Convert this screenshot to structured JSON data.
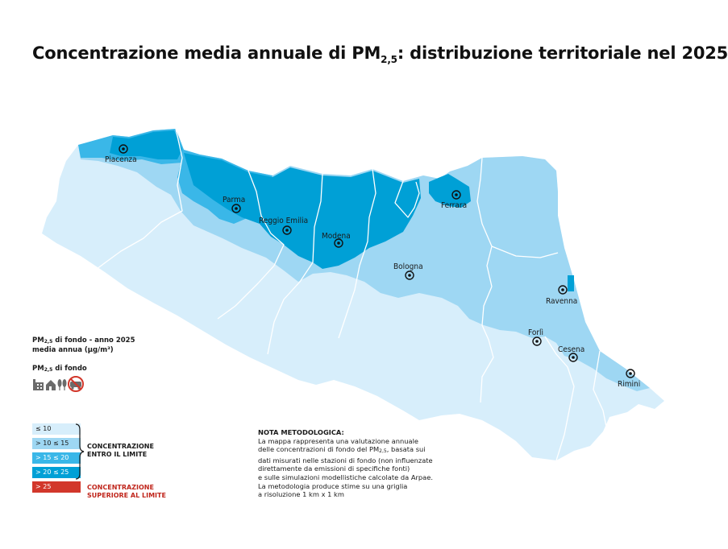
{
  "title": {
    "before": "Concentrazione media annuale di PM",
    "sub": "2,5",
    "after": ": distribuzione territoriale nel 2025"
  },
  "cities": [
    {
      "name": "Piacenza"
    },
    {
      "name": "Parma"
    },
    {
      "name": "Reggio Emilia"
    },
    {
      "name": "Modena"
    },
    {
      "name": "Ferrara"
    },
    {
      "name": "Bologna"
    },
    {
      "name": "Ravenna"
    },
    {
      "name": "Forlì"
    },
    {
      "name": "Cesena"
    },
    {
      "name": "Rimini"
    }
  ],
  "legend": {
    "heading_pm": "PM",
    "heading_sub": "2,5",
    "heading_rest": " di fondo - anno 2025",
    "heading_line2": "media annua (µg/m³)",
    "subheading_pm": "PM",
    "subheading_sub": "2,5",
    "subheading_rest": " di fondo",
    "icons": [
      "industry-icon",
      "house-icon",
      "trees-icon",
      "no-traffic-icon"
    ],
    "classes": [
      {
        "label": "≤ 10",
        "color": "#d7eefb"
      },
      {
        "label": "> 10 ≤ 15",
        "color": "#9ed7f3"
      },
      {
        "label": "> 15 ≤ 20",
        "color": "#3ab7e8"
      },
      {
        "label": "> 20 ≤ 25",
        "color": "#00a0d6"
      },
      {
        "label": "> 25",
        "color": "#d2372b"
      }
    ],
    "group_within_line1": "CONCENTRAZIONE",
    "group_within_line2": "ENTRO IL LIMITE",
    "group_above_line1": "CONCENTRAZIONE",
    "group_above_line2": "SUPERIORE AL LIMITE"
  },
  "note": {
    "title": "NOTA METODOLOGICA:",
    "line1": "La mappa rappresenta una valutazione annuale",
    "line2a": "delle concentrazioni di fondo del PM",
    "line2sub": "2,5",
    "line2b": ", basata sui",
    "line3": "dati misurati nelle stazioni di fondo (non influenzate",
    "line4": "direttamente da emissioni di specifiche fonti)",
    "line5": "e sulle simulazioni modellistiche calcolate da Arpae.",
    "line6": "La metodologia produce stime su una griglia",
    "line7": "a risoluzione 1 km x 1 km"
  }
}
